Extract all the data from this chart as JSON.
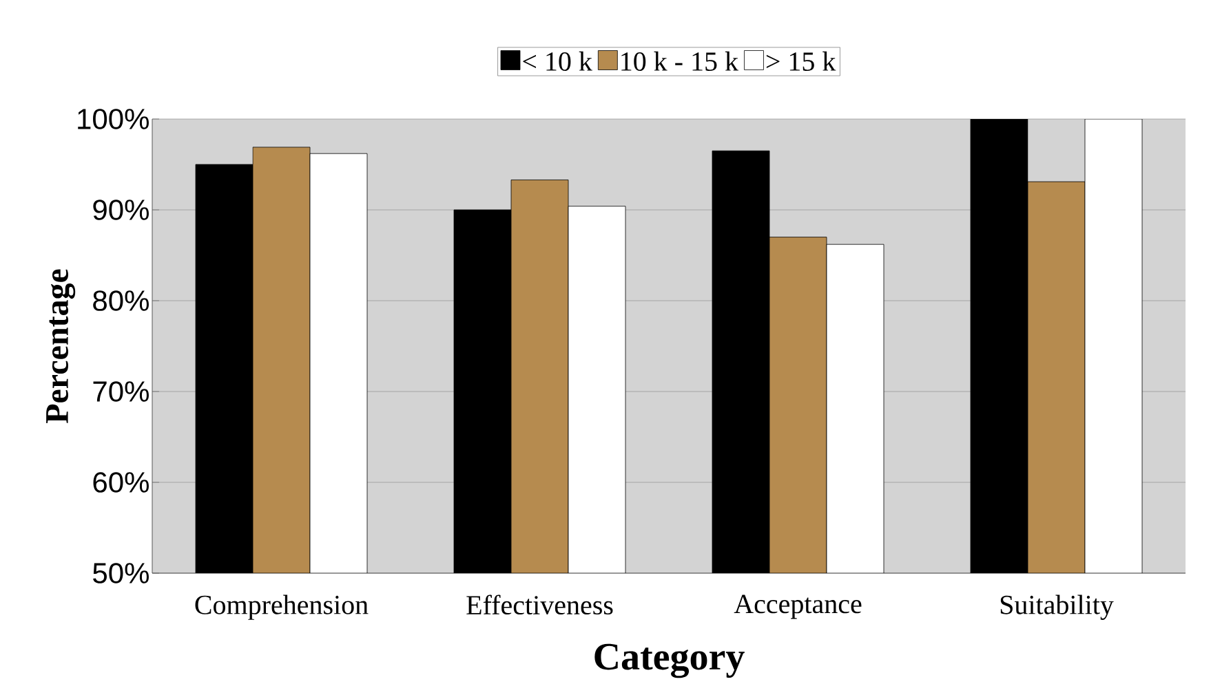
{
  "chart_data": {
    "type": "bar",
    "xlabel": "Category",
    "ylabel": "Percentage",
    "categories": [
      "Comprehension",
      "Effectiveness",
      "Acceptance",
      "Suitability"
    ],
    "series": [
      {
        "name": "< 10 k",
        "color": "#000000",
        "values": [
          95,
          90,
          96.5,
          100
        ]
      },
      {
        "name": "10 k - 15 k",
        "color": "#b68b4f",
        "values": [
          96.9,
          93.3,
          87,
          93.1
        ]
      },
      {
        "name": "> 15 k",
        "color": "#ffffff",
        "values": [
          96.2,
          90.4,
          86.2,
          100
        ]
      }
    ],
    "ylim": [
      50,
      100
    ],
    "yticks": [
      {
        "value": 50,
        "label": "50%"
      },
      {
        "value": 60,
        "label": "60%"
      },
      {
        "value": 70,
        "label": "70%"
      },
      {
        "value": 80,
        "label": "80%"
      },
      {
        "value": 90,
        "label": "90%"
      },
      {
        "value": 100,
        "label": "100%"
      }
    ],
    "grid": "y",
    "legend": "top"
  }
}
